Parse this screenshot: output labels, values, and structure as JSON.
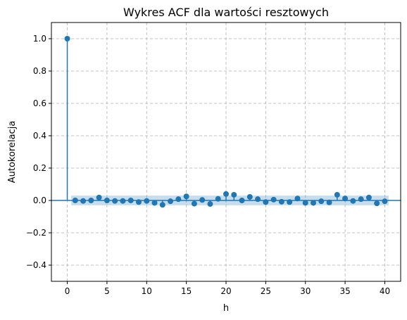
{
  "chart_data": {
    "type": "stem",
    "title": "Wykres ACF dla wartości resztowych",
    "xlabel": "h",
    "ylabel": "Autokorelacja",
    "xlim": [
      -2,
      42
    ],
    "ylim": [
      -0.5,
      1.1
    ],
    "xticks": [
      0,
      5,
      10,
      15,
      20,
      25,
      30,
      35,
      40
    ],
    "yticks": [
      -0.4,
      -0.2,
      0.0,
      0.2,
      0.4,
      0.6,
      0.8,
      1.0
    ],
    "ytick_labels": [
      "−0.4",
      "−0.2",
      "0.0",
      "0.2",
      "0.4",
      "0.6",
      "0.8",
      "1.0"
    ],
    "grid": true,
    "color": "#1f77b4",
    "confidence_band": {
      "x_range": [
        0.5,
        40.5
      ],
      "lower": -0.03,
      "upper": 0.03,
      "color": "#1f77b4"
    },
    "x": [
      0,
      1,
      2,
      3,
      4,
      5,
      6,
      7,
      8,
      9,
      10,
      11,
      12,
      13,
      14,
      15,
      16,
      17,
      18,
      19,
      20,
      21,
      22,
      23,
      24,
      25,
      26,
      27,
      28,
      29,
      30,
      31,
      32,
      33,
      34,
      35,
      36,
      37,
      38,
      39,
      40
    ],
    "values": [
      1.0,
      0.0,
      -0.003,
      0.0,
      0.018,
      0.0,
      -0.003,
      -0.003,
      0.0,
      -0.01,
      -0.003,
      -0.015,
      -0.027,
      -0.005,
      0.008,
      0.025,
      -0.02,
      0.003,
      -0.022,
      0.01,
      0.04,
      0.035,
      0.0,
      0.022,
      0.008,
      -0.01,
      0.005,
      -0.008,
      -0.01,
      0.012,
      -0.015,
      -0.015,
      -0.005,
      -0.012,
      0.035,
      0.012,
      -0.003,
      0.008,
      0.018,
      -0.018,
      -0.005
    ]
  }
}
